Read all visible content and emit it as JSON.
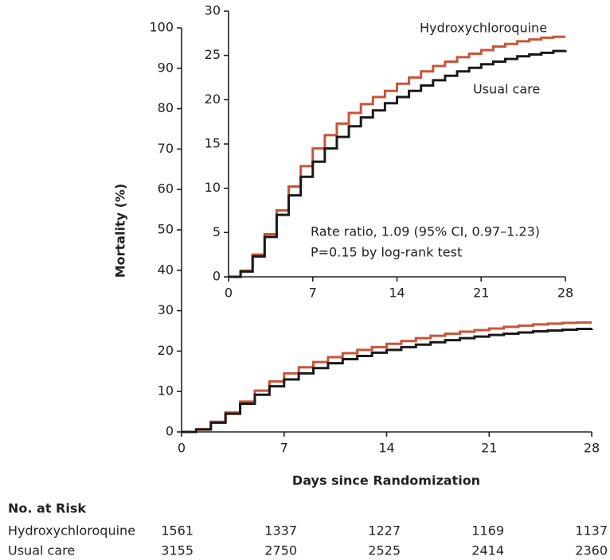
{
  "chart_data": [
    {
      "type": "line",
      "drawstyle": "steps-post",
      "ylabel": "Mortality (%)",
      "xlabel": "Days since Randomization",
      "x": [
        0,
        1,
        2,
        3,
        4,
        5,
        6,
        7,
        8,
        9,
        10,
        11,
        12,
        13,
        14,
        15,
        16,
        17,
        18,
        19,
        20,
        21,
        22,
        23,
        24,
        25,
        26,
        27,
        28
      ],
      "series": [
        {
          "name": "Hydroxychloroquine",
          "color": "#c8553a",
          "values": [
            0,
            0.7,
            2.5,
            4.8,
            7.5,
            10.2,
            12.5,
            14.5,
            16,
            17.3,
            18.5,
            19.5,
            20.3,
            21,
            21.8,
            22.5,
            23.2,
            23.8,
            24.3,
            24.8,
            25.2,
            25.6,
            26,
            26.3,
            26.6,
            26.8,
            27,
            27.1,
            27.1
          ]
        },
        {
          "name": "Usual care",
          "color": "#1a1a1a",
          "values": [
            0,
            0.6,
            2.3,
            4.5,
            7,
            9.2,
            11.3,
            13,
            14.5,
            15.8,
            17,
            18,
            18.8,
            19.6,
            20.3,
            21,
            21.6,
            22.2,
            22.7,
            23.2,
            23.6,
            24,
            24.3,
            24.6,
            24.9,
            25.1,
            25.3,
            25.5,
            25.6
          ]
        }
      ],
      "xlim": [
        0,
        28
      ],
      "xticks": [
        0,
        7,
        14,
        21,
        28
      ],
      "ylim": [
        0,
        100
      ],
      "yticks": [
        0,
        10,
        20,
        30,
        40,
        50,
        60,
        70,
        80,
        90,
        100
      ],
      "risk_table": {
        "title": "No. at Risk",
        "rows": [
          [
            1561,
            1337,
            1227,
            1169,
            1137
          ],
          [
            3155,
            2750,
            2525,
            2414,
            2360
          ]
        ]
      }
    },
    {
      "type": "line",
      "drawstyle": "steps-post",
      "x": [
        0,
        1,
        2,
        3,
        4,
        5,
        6,
        7,
        8,
        9,
        10,
        11,
        12,
        13,
        14,
        15,
        16,
        17,
        18,
        19,
        20,
        21,
        22,
        23,
        24,
        25,
        26,
        27,
        28
      ],
      "series": [
        {
          "name": "Hydroxychloroquine",
          "color": "#c8553a",
          "values": [
            0,
            0.7,
            2.5,
            4.8,
            7.5,
            10.2,
            12.5,
            14.5,
            16,
            17.3,
            18.5,
            19.5,
            20.3,
            21,
            21.8,
            22.5,
            23.2,
            23.8,
            24.3,
            24.8,
            25.2,
            25.6,
            26,
            26.3,
            26.6,
            26.8,
            27,
            27.1,
            27.1
          ]
        },
        {
          "name": "Usual care",
          "color": "#1a1a1a",
          "values": [
            0,
            0.6,
            2.3,
            4.5,
            7,
            9.2,
            11.3,
            13,
            14.5,
            15.8,
            17,
            18,
            18.8,
            19.6,
            20.3,
            21,
            21.6,
            22.2,
            22.7,
            23.2,
            23.6,
            24,
            24.3,
            24.6,
            24.9,
            25.1,
            25.3,
            25.5,
            25.6
          ]
        }
      ],
      "xlim": [
        0,
        28
      ],
      "xticks": [
        0,
        7,
        14,
        21,
        28
      ],
      "ylim": [
        0,
        30
      ],
      "yticks": [
        0,
        5,
        10,
        15,
        20,
        25,
        30
      ],
      "annotations": [
        "Rate ratio, 1.09 (95% CI, 0.97–1.23)",
        "P=0.15 by log-rank test"
      ]
    }
  ]
}
